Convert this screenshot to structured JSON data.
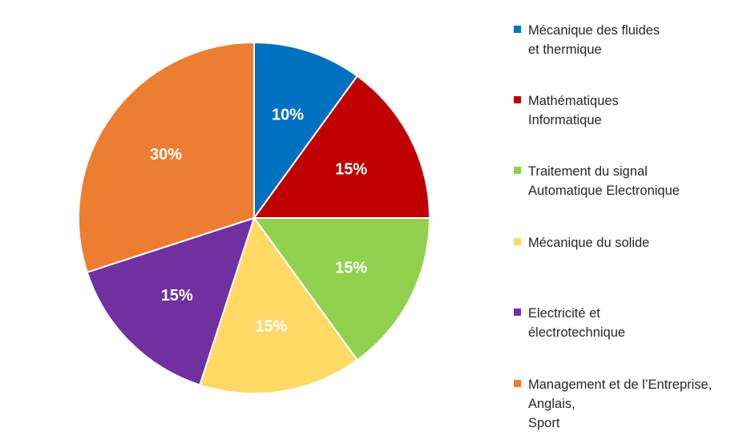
{
  "chart_data": {
    "type": "pie",
    "title": "",
    "categories": [
      "Mécanique des fluides\net thermique",
      "Mathématiques\nInformatique",
      "Traitement du signal\nAutomatique Electronique",
      "Mécanique du solide",
      "Electricité et\nélectrotechnique",
      "Management et de l’Entreprise,\nAnglais,\nSport"
    ],
    "values": [
      10,
      15,
      15,
      15,
      15,
      30
    ],
    "data_labels": [
      "10%",
      "15%",
      "15%",
      "15%",
      "15%",
      "30%"
    ],
    "colors": [
      "#0070C0",
      "#C00000",
      "#92D050",
      "#FFD966",
      "#7030A0",
      "#ED7D31"
    ],
    "legend_position": "right"
  }
}
